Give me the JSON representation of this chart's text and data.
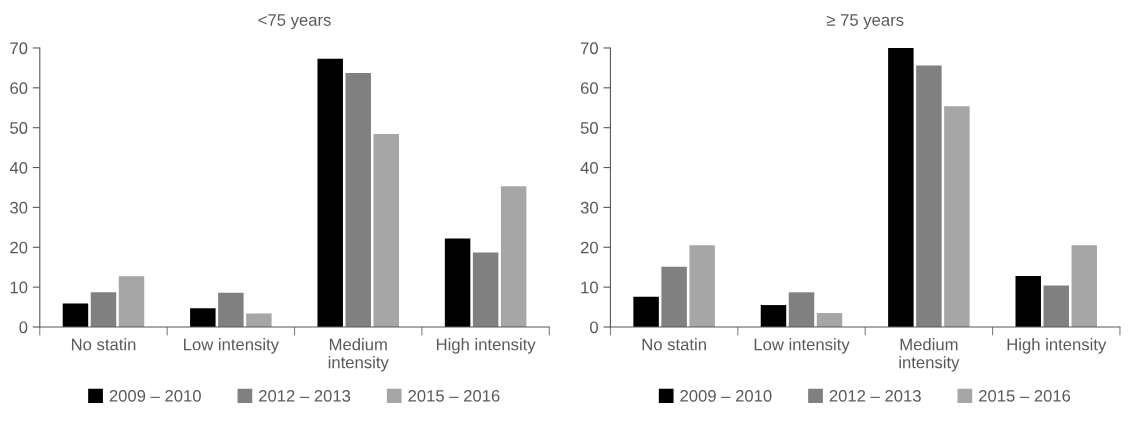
{
  "chart_data": [
    {
      "type": "bar",
      "title": "<75 years",
      "categories": [
        "No statin",
        "Low intensity",
        "Medium\nintensity",
        "High intensity"
      ],
      "ylim": [
        0,
        70
      ],
      "yticks": [
        0,
        10,
        20,
        30,
        40,
        50,
        60,
        70
      ],
      "grid": false,
      "legend": "bottom",
      "series": [
        {
          "name": "2009 – 2010",
          "color": "#000000",
          "values": [
            5.9,
            4.7,
            67.3,
            22.2
          ]
        },
        {
          "name": "2012 – 2013",
          "color": "#808080",
          "values": [
            8.7,
            8.6,
            63.7,
            18.7
          ]
        },
        {
          "name": "2015 – 2016",
          "color": "#a6a6a6",
          "values": [
            12.7,
            3.4,
            48.4,
            35.3
          ]
        }
      ]
    },
    {
      "type": "bar",
      "title": "≥ 75 years",
      "categories": [
        "No statin",
        "Low intensity",
        "Medium\nintensity",
        "High intensity"
      ],
      "ylim": [
        0,
        70
      ],
      "yticks": [
        0,
        10,
        20,
        30,
        40,
        50,
        60,
        70
      ],
      "grid": false,
      "legend": "bottom",
      "series": [
        {
          "name": "2009 – 2010",
          "color": "#000000",
          "values": [
            7.6,
            5.5,
            70,
            12.8
          ]
        },
        {
          "name": "2012 – 2013",
          "color": "#808080",
          "values": [
            15.1,
            8.7,
            65.6,
            10.4
          ]
        },
        {
          "name": "2015 – 2016",
          "color": "#a6a6a6",
          "values": [
            20.5,
            3.5,
            55.4,
            20.5
          ]
        }
      ]
    }
  ]
}
